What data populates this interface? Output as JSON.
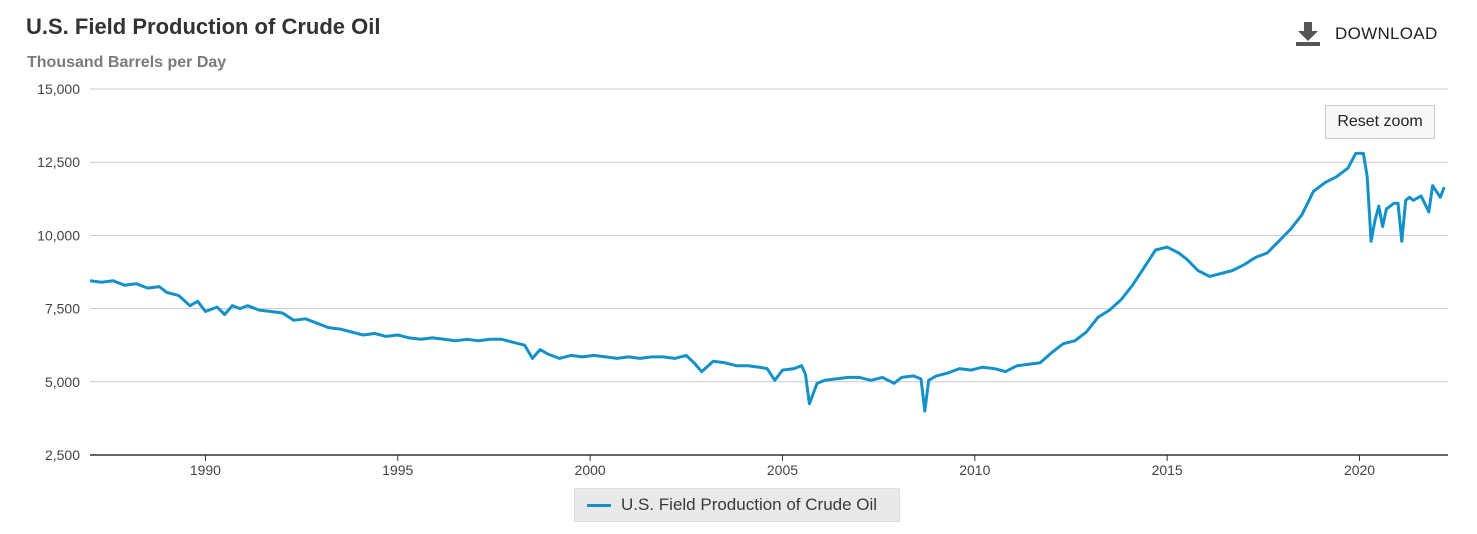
{
  "header": {
    "title": "U.S. Field Production of Crude Oil",
    "subtitle": "Thousand Barrels per Day",
    "download_label": "DOWNLOAD",
    "download_icon": "download-icon"
  },
  "controls": {
    "reset_zoom_label": "Reset zoom"
  },
  "legend": {
    "label": "U.S. Field Production of Crude Oil"
  },
  "colors": {
    "series": "#1391c8",
    "grid": "#c8c8c8",
    "axis": "#333333"
  },
  "chart_data": {
    "type": "line",
    "title": "U.S. Field Production of Crude Oil",
    "subtitle": "Thousand Barrels per Day",
    "ylim": [
      2500,
      15000
    ],
    "xlim": [
      1987.0,
      2022.3
    ],
    "yticks": [
      2500,
      5000,
      7500,
      10000,
      12500,
      15000
    ],
    "ytick_labels": [
      "2,500",
      "5,000",
      "7,500",
      "10,000",
      "12,500",
      "15,000"
    ],
    "xticks": [
      1990,
      1995,
      2000,
      2005,
      2010,
      2015,
      2020
    ],
    "xtick_labels": [
      "1990",
      "1995",
      "2000",
      "2005",
      "2010",
      "2015",
      "2020"
    ],
    "grid": true,
    "legend_position": "bottom-center",
    "series": [
      {
        "name": "U.S. Field Production of Crude Oil",
        "x": [
          1987.0,
          1987.3,
          1987.6,
          1987.9,
          1988.2,
          1988.5,
          1988.8,
          1989.0,
          1989.3,
          1989.6,
          1989.8,
          1990.0,
          1990.3,
          1990.5,
          1990.7,
          1990.9,
          1991.1,
          1991.4,
          1991.7,
          1992.0,
          1992.3,
          1992.6,
          1992.9,
          1993.2,
          1993.5,
          1993.8,
          1994.1,
          1994.4,
          1994.7,
          1995.0,
          1995.3,
          1995.6,
          1995.9,
          1996.2,
          1996.5,
          1996.8,
          1997.1,
          1997.4,
          1997.7,
          1998.0,
          1998.3,
          1998.5,
          1998.7,
          1998.9,
          1999.2,
          1999.5,
          1999.8,
          2000.1,
          2000.4,
          2000.7,
          2001.0,
          2001.3,
          2001.6,
          2001.9,
          2002.2,
          2002.5,
          2002.7,
          2002.9,
          2003.2,
          2003.5,
          2003.8,
          2004.1,
          2004.4,
          2004.6,
          2004.8,
          2005.0,
          2005.3,
          2005.5,
          2005.6,
          2005.7,
          2005.9,
          2006.1,
          2006.4,
          2006.7,
          2007.0,
          2007.3,
          2007.6,
          2007.9,
          2008.1,
          2008.4,
          2008.6,
          2008.7,
          2008.8,
          2009.0,
          2009.3,
          2009.6,
          2009.9,
          2010.2,
          2010.5,
          2010.8,
          2011.1,
          2011.4,
          2011.7,
          2012.0,
          2012.3,
          2012.6,
          2012.9,
          2013.2,
          2013.5,
          2013.8,
          2014.1,
          2014.4,
          2014.7,
          2015.0,
          2015.3,
          2015.5,
          2015.8,
          2016.1,
          2016.4,
          2016.7,
          2017.0,
          2017.3,
          2017.6,
          2017.9,
          2018.2,
          2018.5,
          2018.8,
          2019.1,
          2019.4,
          2019.7,
          2019.9,
          2020.1,
          2020.2,
          2020.3,
          2020.4,
          2020.5,
          2020.6,
          2020.7,
          2020.8,
          2020.9,
          2021.0,
          2021.1,
          2021.2,
          2021.3,
          2021.4,
          2021.6,
          2021.8,
          2021.9,
          2022.0,
          2022.1,
          2022.2
        ],
        "y": [
          8450,
          8400,
          8450,
          8300,
          8350,
          8200,
          8250,
          8050,
          7950,
          7600,
          7750,
          7400,
          7550,
          7300,
          7600,
          7500,
          7600,
          7450,
          7400,
          7350,
          7100,
          7150,
          7000,
          6850,
          6800,
          6700,
          6600,
          6650,
          6550,
          6600,
          6500,
          6450,
          6500,
          6450,
          6400,
          6450,
          6400,
          6450,
          6450,
          6350,
          6250,
          5800,
          6100,
          5950,
          5800,
          5900,
          5850,
          5900,
          5850,
          5800,
          5850,
          5800,
          5850,
          5850,
          5800,
          5900,
          5650,
          5350,
          5700,
          5650,
          5550,
          5550,
          5500,
          5450,
          5050,
          5400,
          5450,
          5550,
          5250,
          4250,
          4950,
          5050,
          5100,
          5150,
          5150,
          5050,
          5150,
          4950,
          5150,
          5200,
          5100,
          4000,
          5050,
          5200,
          5300,
          5450,
          5400,
          5500,
          5450,
          5350,
          5550,
          5600,
          5650,
          6000,
          6300,
          6400,
          6700,
          7200,
          7450,
          7800,
          8300,
          8900,
          9500,
          9600,
          9400,
          9200,
          8800,
          8600,
          8700,
          8800,
          9000,
          9250,
          9400,
          9800,
          10200,
          10700,
          11500,
          11800,
          12000,
          12300,
          12800,
          12800,
          12000,
          9800,
          10500,
          11000,
          10300,
          10900,
          11000,
          11100,
          11100,
          9800,
          11200,
          11300,
          11200,
          11350,
          10800,
          11700,
          11500,
          11300,
          11650
        ]
      }
    ]
  }
}
